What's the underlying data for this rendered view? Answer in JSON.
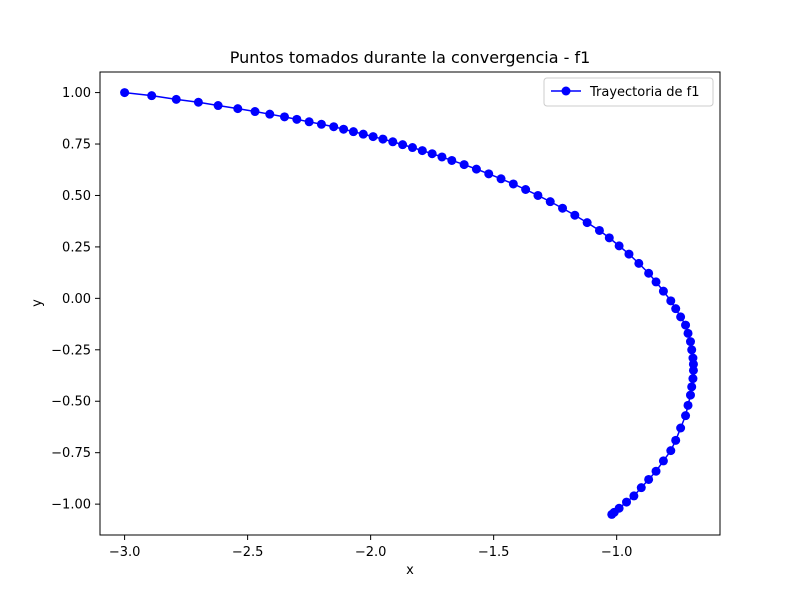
{
  "chart_data": {
    "type": "line",
    "title": "Puntos tomados durante la convergencia - f1",
    "xlabel": "x",
    "ylabel": "y",
    "xlim": [
      -3.1,
      -0.58
    ],
    "ylim": [
      -1.15,
      1.1
    ],
    "x_ticks": [
      -3.0,
      -2.5,
      -2.0,
      -1.5,
      -1.0
    ],
    "x_tick_labels": [
      "−3.0",
      "−2.5",
      "−2.0",
      "−1.5",
      "−1.0"
    ],
    "y_ticks": [
      1.0,
      0.75,
      0.5,
      0.25,
      0.0,
      -0.25,
      -0.5,
      -0.75,
      -1.0
    ],
    "y_tick_labels": [
      "1.00",
      "0.75",
      "0.50",
      "0.25",
      "0.00",
      "−0.25",
      "−0.50",
      "−0.75",
      "−1.00"
    ],
    "grid": false,
    "legend": "top-right",
    "series": [
      {
        "name": "Trayectoria de f1",
        "color": "#0000ff",
        "marker": "circle",
        "x": [
          -3.0,
          -2.89,
          -2.79,
          -2.7,
          -2.62,
          -2.54,
          -2.47,
          -2.41,
          -2.35,
          -2.3,
          -2.25,
          -2.2,
          -2.15,
          -2.11,
          -2.07,
          -2.03,
          -1.99,
          -1.95,
          -1.91,
          -1.87,
          -1.83,
          -1.79,
          -1.75,
          -1.71,
          -1.67,
          -1.62,
          -1.57,
          -1.52,
          -1.47,
          -1.42,
          -1.37,
          -1.32,
          -1.27,
          -1.22,
          -1.17,
          -1.12,
          -1.07,
          -1.03,
          -0.99,
          -0.95,
          -0.91,
          -0.87,
          -0.84,
          -0.81,
          -0.78,
          -0.76,
          -0.74,
          -0.72,
          -0.71,
          -0.7,
          -0.695,
          -0.69,
          -0.688,
          -0.688,
          -0.69,
          -0.695,
          -0.7,
          -0.71,
          -0.72,
          -0.74,
          -0.76,
          -0.78,
          -0.81,
          -0.84,
          -0.87,
          -0.9,
          -0.93,
          -0.96,
          -0.99,
          -1.01,
          -1.02
        ],
        "y": [
          1.0,
          0.985,
          0.967,
          0.953,
          0.937,
          0.922,
          0.908,
          0.895,
          0.882,
          0.87,
          0.858,
          0.846,
          0.834,
          0.822,
          0.81,
          0.798,
          0.786,
          0.774,
          0.761,
          0.747,
          0.733,
          0.718,
          0.703,
          0.687,
          0.67,
          0.65,
          0.628,
          0.605,
          0.581,
          0.556,
          0.529,
          0.5,
          0.47,
          0.438,
          0.404,
          0.368,
          0.33,
          0.294,
          0.255,
          0.215,
          0.17,
          0.122,
          0.08,
          0.035,
          -0.012,
          -0.05,
          -0.09,
          -0.13,
          -0.17,
          -0.21,
          -0.25,
          -0.29,
          -0.32,
          -0.35,
          -0.39,
          -0.43,
          -0.47,
          -0.52,
          -0.57,
          -0.63,
          -0.69,
          -0.74,
          -0.79,
          -0.84,
          -0.88,
          -0.92,
          -0.96,
          -0.99,
          -1.02,
          -1.04,
          -1.05
        ]
      }
    ]
  }
}
